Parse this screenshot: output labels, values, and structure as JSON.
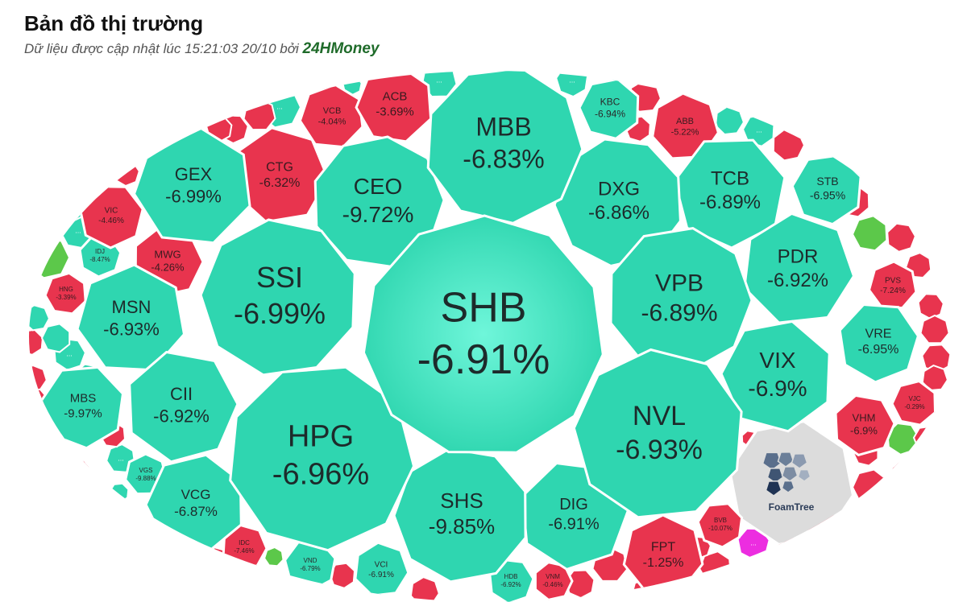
{
  "header": {
    "title": "Bản đồ thị trường",
    "subtitle_prefix": "Dữ liệu được cập nhật lúc 15:21:03 20/10 bởi",
    "brand": "24HMoney"
  },
  "colors": {
    "down_teal": "#2fd6b0",
    "down_teal_hub": "#5ef0d0",
    "red": "#e8344e",
    "green": "#5cc84a",
    "magenta": "#ec2de0",
    "foamtree_gray": "#dcdcdc",
    "border": "#ffffff"
  },
  "foamtree_logo": {
    "label": "FoamTree"
  },
  "chart_data": {
    "type": "treemap",
    "title": "Bản đồ thị trường",
    "cells": [
      {
        "ticker": "SHB",
        "change": "-6.91%",
        "color": "teal"
      },
      {
        "ticker": "HPG",
        "change": "-6.96%",
        "color": "teal"
      },
      {
        "ticker": "NVL",
        "change": "-6.93%",
        "color": "teal"
      },
      {
        "ticker": "SSI",
        "change": "-6.99%",
        "color": "teal"
      },
      {
        "ticker": "VPB",
        "change": "-6.89%",
        "color": "teal"
      },
      {
        "ticker": "MBB",
        "change": "-6.83%",
        "color": "teal"
      },
      {
        "ticker": "CEO",
        "change": "-9.72%",
        "color": "teal"
      },
      {
        "ticker": "DXG",
        "change": "-6.86%",
        "color": "teal"
      },
      {
        "ticker": "TCB",
        "change": "-6.89%",
        "color": "teal"
      },
      {
        "ticker": "PDR",
        "change": "-6.92%",
        "color": "teal"
      },
      {
        "ticker": "VIX",
        "change": "-6.9%",
        "color": "teal"
      },
      {
        "ticker": "SHS",
        "change": "-9.85%",
        "color": "teal"
      },
      {
        "ticker": "DIG",
        "change": "-6.91%",
        "color": "teal"
      },
      {
        "ticker": "GEX",
        "change": "-6.99%",
        "color": "teal"
      },
      {
        "ticker": "MSN",
        "change": "-6.93%",
        "color": "teal"
      },
      {
        "ticker": "CII",
        "change": "-6.92%",
        "color": "teal"
      },
      {
        "ticker": "VCG",
        "change": "-6.87%",
        "color": "teal"
      },
      {
        "ticker": "MBS",
        "change": "-9.97%",
        "color": "teal"
      },
      {
        "ticker": "VRE",
        "change": "-6.95%",
        "color": "teal"
      },
      {
        "ticker": "STB",
        "change": "-6.95%",
        "color": "teal"
      },
      {
        "ticker": "KBC",
        "change": "-6.94%",
        "color": "teal"
      },
      {
        "ticker": "CTG",
        "change": "-6.32%",
        "color": "red"
      },
      {
        "ticker": "ACB",
        "change": "-3.69%",
        "color": "red"
      },
      {
        "ticker": "VCB",
        "change": "-4.04%",
        "color": "red"
      },
      {
        "ticker": "MWG",
        "change": "-4.26%",
        "color": "red"
      },
      {
        "ticker": "VIC",
        "change": "-4.46%",
        "color": "red"
      },
      {
        "ticker": "ABB",
        "change": "-5.22%",
        "color": "red"
      },
      {
        "ticker": "PVS",
        "change": "-7.24%",
        "color": "red"
      },
      {
        "ticker": "VHM",
        "change": "-6.9%",
        "color": "red"
      },
      {
        "ticker": "FPT",
        "change": "-1.25%",
        "color": "red"
      },
      {
        "ticker": "BVB",
        "change": "-10.07%",
        "color": "red"
      },
      {
        "ticker": "HNG",
        "change": "-3.39%",
        "color": "red"
      },
      {
        "ticker": "IDC",
        "change": "-7.46%",
        "color": "red"
      },
      {
        "ticker": "VJC",
        "change": "-0.29%",
        "color": "red"
      },
      {
        "ticker": "VNM",
        "change": "-0.46%",
        "color": "red"
      },
      {
        "ticker": "IDJ",
        "change": "-8.47%",
        "color": "teal"
      },
      {
        "ticker": "VGS",
        "change": "-9.88%",
        "color": "teal"
      },
      {
        "ticker": "VND",
        "change": "-6.79%",
        "color": "teal"
      },
      {
        "ticker": "VCI",
        "change": "-6.91%",
        "color": "teal"
      },
      {
        "ticker": "HDB",
        "change": "-6.92%",
        "color": "teal"
      }
    ],
    "unlabeled_cell_text": "..."
  }
}
